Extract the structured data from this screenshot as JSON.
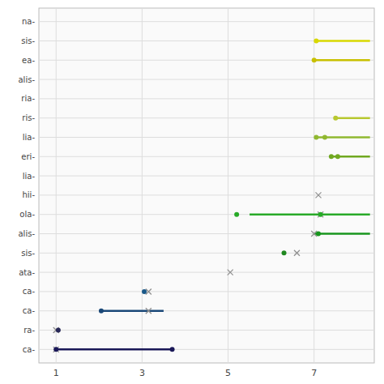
{
  "chart_data": {
    "type": "dot",
    "categories": [
      "na-",
      "sis-",
      "ea-",
      "alis-",
      "ria-",
      "ris-",
      "lia-",
      "eri-",
      "lia-",
      "hii-",
      "ola-",
      "alis-",
      "sis-",
      "ata-",
      "ca-",
      "ca-",
      "ra-",
      "ca-"
    ],
    "colors": [
      "#c8c800",
      "#d8d800",
      "#c8c000",
      "#b8b000",
      "#a8a000",
      "#b8c830",
      "#90b830",
      "#70a820",
      "#509810",
      "#808080",
      "#28aa28",
      "#18961e",
      "#208820",
      "#1a7888",
      "#1a5888",
      "#1a4878",
      "#282858",
      "#1a1858"
    ],
    "series": [
      {
        "type": "range",
        "values": [
          [],
          [
            [
              7.05,
              8.3
            ]
          ],
          [
            [
              7.0,
              8.3
            ]
          ],
          [],
          [],
          [
            [
              7.5,
              8.3
            ]
          ],
          [
            [
              7.05,
              8.3
            ]
          ],
          [
            [
              7.4,
              8.3
            ]
          ],
          [],
          [],
          [
            [
              5.5,
              8.3
            ]
          ],
          [
            [
              7.0,
              8.3
            ]
          ],
          [],
          [],
          [],
          [
            [
              2.05,
              3.5
            ]
          ],
          [],
          [
            [
              1.0,
              3.7
            ]
          ]
        ]
      },
      {
        "type": "scatter",
        "marker": "circle",
        "values": [
          [],
          [
            7.05
          ],
          [
            7.0
          ],
          [],
          [],
          [
            7.5
          ],
          [
            7.05,
            7.25
          ],
          [
            7.4,
            7.55
          ],
          [],
          [],
          [
            5.2,
            7.15
          ],
          [
            7.1
          ],
          [
            6.3
          ],
          [],
          [
            3.05
          ],
          [
            2.05
          ],
          [
            1.05
          ],
          [
            1.0,
            3.7
          ]
        ]
      },
      {
        "type": "scatter",
        "marker": "x",
        "color": "#909090",
        "values": [
          [],
          [],
          [],
          [],
          [],
          [],
          [],
          [],
          [],
          [
            7.1
          ],
          [
            7.15
          ],
          [
            7.0
          ],
          [
            6.6
          ],
          [
            5.05
          ],
          [
            3.15
          ],
          [
            3.15
          ],
          [
            1.0
          ],
          [
            1.0
          ]
        ]
      }
    ],
    "xlim": [
      0.6,
      8.4
    ],
    "xticks": [
      1,
      3,
      5,
      7
    ],
    "grid": true
  }
}
